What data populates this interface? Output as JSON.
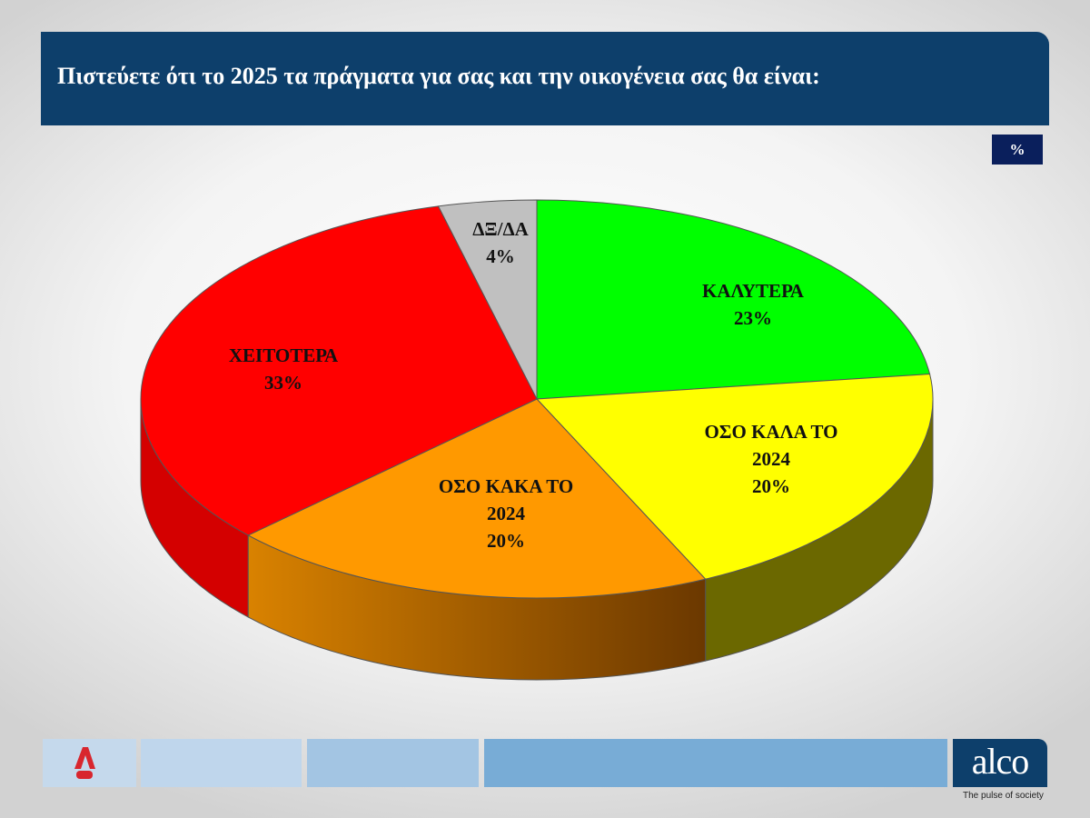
{
  "header": {
    "title": "Πιστεύετε ότι το 2025 τα πράγματα για σας και την οικογένεια σας θα είναι:",
    "unit_label": "%"
  },
  "chart_data": {
    "type": "pie",
    "style": "3d",
    "start": "top, clockwise",
    "title": "",
    "slices": [
      {
        "label_lines": [
          "ΚΑΛΥΤΕΡΑ"
        ],
        "value": 23,
        "value_label": "23%",
        "color": "#00ff00",
        "side_color": "#00a000"
      },
      {
        "label_lines": [
          "ΟΣΟ ΚΑΛΑ ΤΟ",
          "2024"
        ],
        "value": 20,
        "value_label": "20%",
        "color": "#ffff00",
        "side_color": "#6b6800"
      },
      {
        "label_lines": [
          "ΟΣΟ ΚΑΚΑ ΤΟ",
          "2024"
        ],
        "value": 20,
        "value_label": "20%",
        "color": "#ff9900",
        "side_color": "#a85a00"
      },
      {
        "label_lines": [
          "ΧΕΙΤΟΤΕΡΑ"
        ],
        "value": 33,
        "value_label": "33%",
        "color": "#ff0000",
        "side_color": "#d40000"
      },
      {
        "label_lines": [
          "ΔΞ/ΔΑ"
        ],
        "value": 4,
        "value_label": "4%",
        "color": "#c0c0c0",
        "side_color": "#8a8a8a"
      }
    ]
  },
  "footer": {
    "brand": "alco",
    "tagline": "The pulse of society",
    "partner_logo": "ALPHA NEWS",
    "colors": [
      "#c5d9ec",
      "#bfd6ec",
      "#a3c5e3",
      "#78acd6"
    ]
  }
}
